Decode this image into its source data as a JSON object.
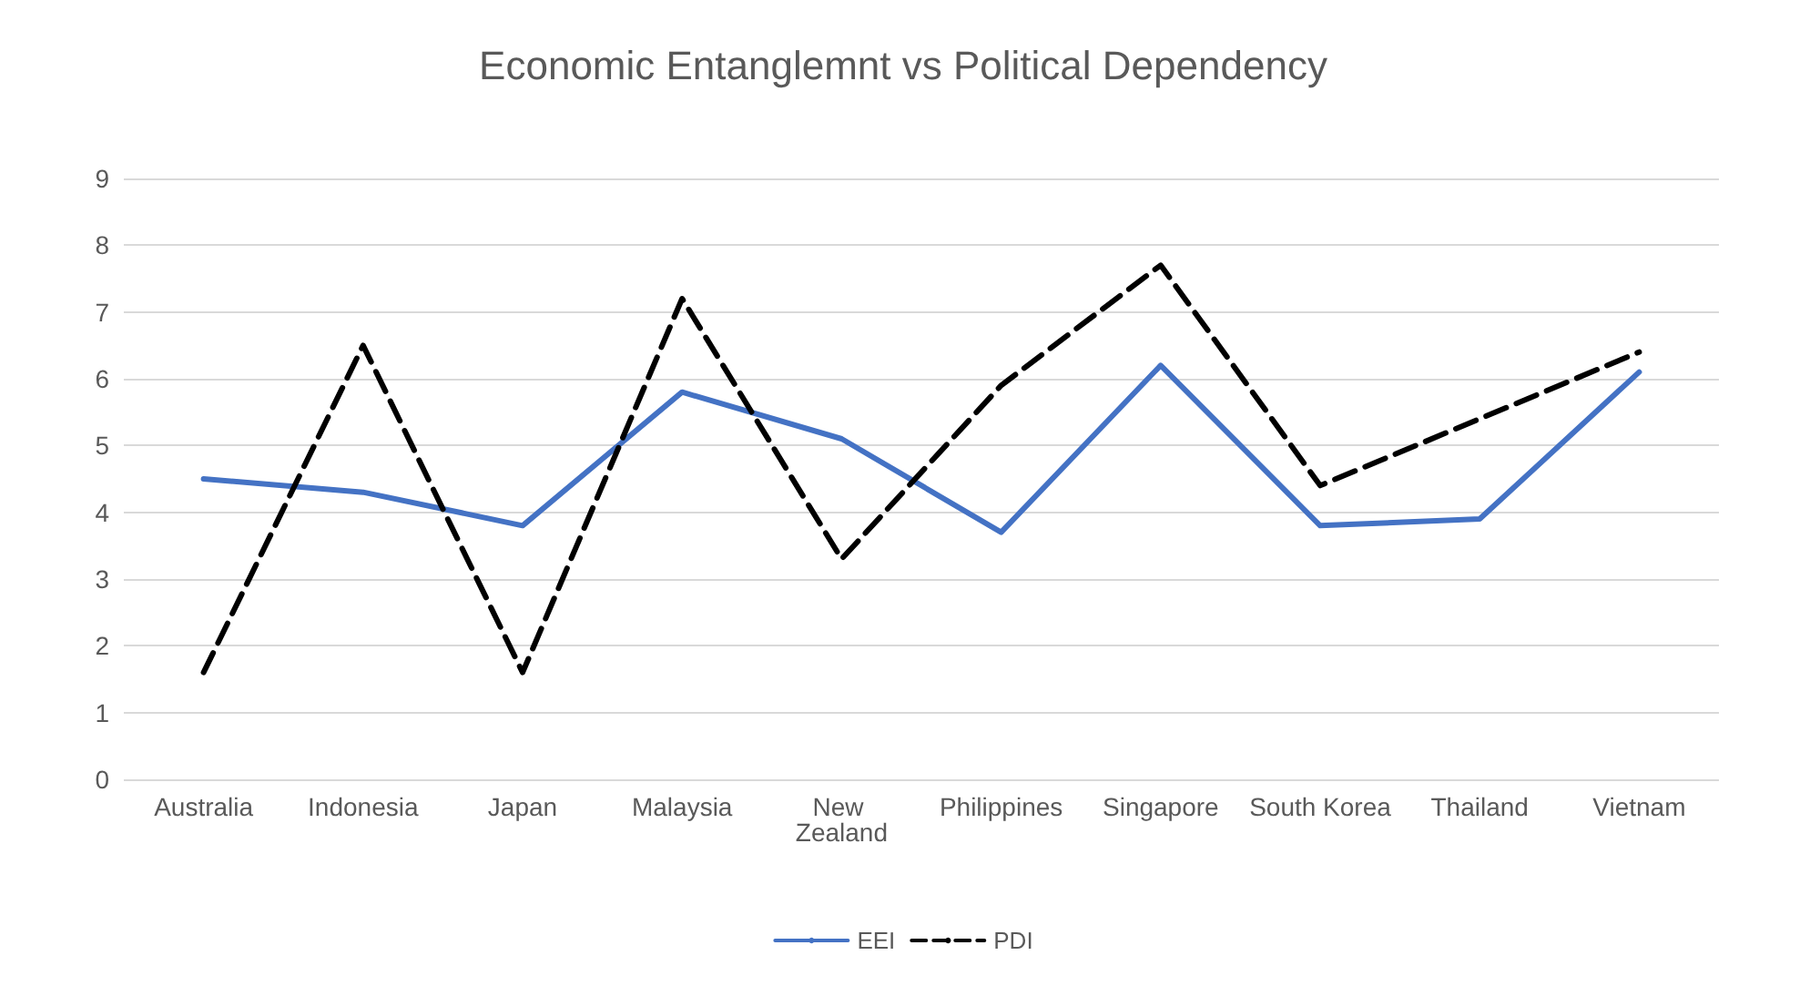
{
  "chart_data": {
    "type": "line",
    "title": "Economic Entanglemnt vs Political Dependency",
    "categories": [
      "Australia",
      "Indonesia",
      "Japan",
      "Malaysia",
      "New Zealand",
      "Philippines",
      "Singapore",
      "South Korea",
      "Thailand",
      "Vietnam"
    ],
    "series": [
      {
        "name": "EEI",
        "color": "#4472c4",
        "line_style": "solid",
        "values": [
          4.5,
          4.3,
          3.8,
          5.8,
          5.1,
          3.7,
          6.2,
          3.8,
          3.9,
          6.1
        ]
      },
      {
        "name": "PDI",
        "color": "#000000",
        "line_style": "dashed",
        "values": [
          1.6,
          6.5,
          1.6,
          7.2,
          3.3,
          5.9,
          7.7,
          4.4,
          5.4,
          6.4
        ]
      }
    ],
    "ylim": [
      0,
      9
    ],
    "yticks": [
      0,
      1,
      2,
      3,
      4,
      5,
      6,
      7,
      8,
      9
    ],
    "grid": "y",
    "legend": "bottom",
    "marker": "none"
  }
}
